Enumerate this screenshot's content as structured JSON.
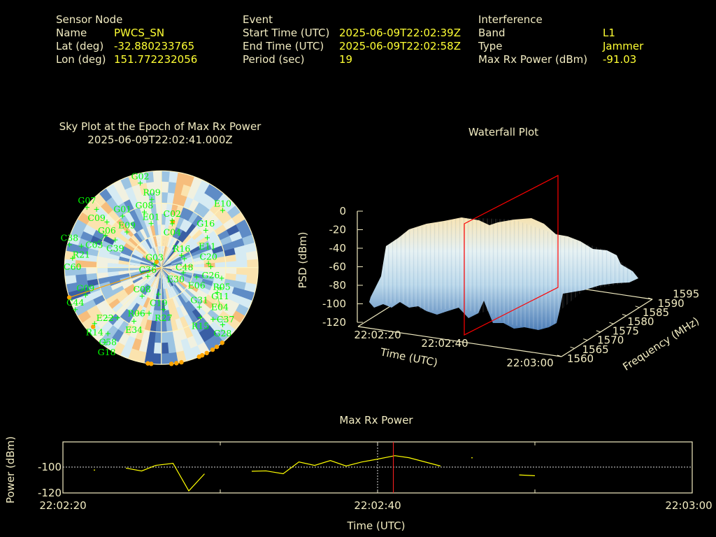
{
  "header": {
    "sensor": {
      "title": "Sensor Node",
      "rows": [
        {
          "label": "Name",
          "value": "PWCS_SN"
        },
        {
          "label": "Lat (deg)",
          "value": "-32.880233765"
        },
        {
          "label": "Lon (deg)",
          "value": "151.772232056"
        }
      ]
    },
    "event": {
      "title": "Event",
      "rows": [
        {
          "label": "Start Time (UTC)",
          "value": "2025-06-09T22:02:39Z"
        },
        {
          "label": "End Time (UTC)",
          "value": "2025-06-09T22:02:58Z"
        },
        {
          "label": "Period (sec)",
          "value": "19"
        }
      ]
    },
    "interference": {
      "title": "Interference",
      "rows": [
        {
          "label": "Band",
          "value": "L1"
        },
        {
          "label": "Type",
          "value": "Jammer"
        },
        {
          "label": "Max Rx Power (dBm)",
          "value": "-91.03"
        }
      ]
    }
  },
  "colors": {
    "text": "#f2ecc2",
    "value": "#ffff33",
    "satellite": "#00ff00",
    "jammer": "#ffa500",
    "marker": "#ff0000",
    "line": "#ffff00"
  },
  "chart_data": [
    {
      "type": "scatter",
      "subtype": "polar-sky-plot",
      "title": "Sky Plot at the Epoch of Max Rx Power",
      "subtitle": "2025-06-09T22:02:41.000Z",
      "elevation_rings": [
        0,
        30,
        60
      ],
      "satellites": [
        {
          "id": "G02",
          "az": 346,
          "el": 9
        },
        {
          "id": "R09",
          "az": 352,
          "el": 26
        },
        {
          "id": "G07",
          "az": 309,
          "el": 1
        },
        {
          "id": "C09",
          "az": 312,
          "el": 9
        },
        {
          "id": "G01",
          "az": 323,
          "el": 30
        },
        {
          "id": "G08",
          "az": 343,
          "el": 36
        },
        {
          "id": "E01",
          "az": 347,
          "el": 48
        },
        {
          "id": "C02",
          "az": 13,
          "el": 45
        },
        {
          "id": "C04",
          "az": 14,
          "el": 48
        },
        {
          "id": "E10",
          "az": 47,
          "el": 12
        },
        {
          "id": "G16",
          "az": 50,
          "el": 36
        },
        {
          "id": "E11",
          "az": 57,
          "el": 39
        },
        {
          "id": "G06",
          "az": 310,
          "el": 24
        },
        {
          "id": "E09",
          "az": 316,
          "el": 44
        },
        {
          "id": "C39",
          "az": 301,
          "el": 40
        },
        {
          "id": "C03",
          "az": 300,
          "el": 30
        },
        {
          "id": "C38",
          "az": 284,
          "el": 2
        },
        {
          "id": "R21",
          "az": 285,
          "el": 13
        },
        {
          "id": "C60",
          "az": 276,
          "el": 7
        },
        {
          "id": "R16",
          "az": 59,
          "el": 68
        },
        {
          "id": "C48",
          "az": 69,
          "el": 67
        },
        {
          "id": "C20",
          "az": 85,
          "el": 46
        },
        {
          "id": "G26",
          "az": 89,
          "el": 44
        },
        {
          "id": "E06",
          "az": 105,
          "el": 56
        },
        {
          "id": "R05",
          "az": 100,
          "el": 33
        },
        {
          "id": "G11",
          "az": 109,
          "el": 32
        },
        {
          "id": "E04",
          "az": 114,
          "el": 33
        },
        {
          "id": "E30",
          "az": 103,
          "el": 69
        },
        {
          "id": "C36",
          "az": 237,
          "el": 75
        },
        {
          "id": "C19",
          "az": 186,
          "el": 65
        },
        {
          "id": "C08",
          "az": 214,
          "el": 58
        },
        {
          "id": "G09",
          "az": 250,
          "el": 15
        },
        {
          "id": "C44",
          "az": 244,
          "el": 1
        },
        {
          "id": "R27",
          "az": 177,
          "el": 51
        },
        {
          "id": "R06",
          "az": 195,
          "el": 46
        },
        {
          "id": "E34",
          "az": 207,
          "el": 34
        },
        {
          "id": "E22",
          "az": 221,
          "el": 28
        },
        {
          "id": "G31",
          "az": 136,
          "el": 39
        },
        {
          "id": "R15",
          "az": 142,
          "el": 31
        },
        {
          "id": "C37",
          "az": 135,
          "el": 22
        },
        {
          "id": "G28",
          "az": 133,
          "el": 12
        },
        {
          "id": "R14",
          "az": 230,
          "el": 9
        },
        {
          "id": "C58",
          "az": 219,
          "el": 11
        },
        {
          "id": "G18",
          "az": 217,
          "el": 3
        },
        {
          "id": "G03",
          "az": 296,
          "el": 83
        }
      ],
      "jammer_markers": [
        {
          "az": 141,
          "el": 0
        },
        {
          "az": 145,
          "el": 0
        },
        {
          "az": 148,
          "el": 0
        },
        {
          "az": 152,
          "el": 0
        },
        {
          "az": 155,
          "el": 0
        },
        {
          "az": 157,
          "el": 0
        },
        {
          "az": 168,
          "el": 0
        },
        {
          "az": 171,
          "el": 0
        },
        {
          "az": 174,
          "el": 0
        },
        {
          "az": 186,
          "el": 0
        },
        {
          "az": 188,
          "el": 0
        },
        {
          "az": 14,
          "el": 46
        },
        {
          "az": 321,
          "el": 83
        },
        {
          "az": 229,
          "el": 6
        },
        {
          "az": 252,
          "el": 0
        }
      ],
      "jammer_bearing_az": 252
    },
    {
      "type": "surface",
      "title": "Waterfall Plot",
      "xlabel": "Time (UTC)",
      "ylabel": "Frequency (MHz)",
      "zlabel": "PSD (dBm)",
      "x_ticks": [
        "22:02:20",
        "22:02:40",
        "22:03:00"
      ],
      "y_ticks": [
        "1560",
        "1565",
        "1570",
        "1575",
        "1580",
        "1585",
        "1590",
        "1595"
      ],
      "z_ticks": [
        "0",
        "-20",
        "-40",
        "-60",
        "-80",
        "-100",
        "-120"
      ],
      "zlim": [
        -120,
        0
      ],
      "marker_time": "22:02:41"
    },
    {
      "type": "line",
      "title": "Max Rx Power",
      "xlabel": "Time (UTC)",
      "ylabel": "Power (dBm)",
      "x_unit": "seconds after 22:02:20",
      "xlim": [
        0,
        40
      ],
      "ylim": [
        -120,
        -80
      ],
      "x_ticks": [
        "22:02:20",
        "22:02:40",
        "22:03:00"
      ],
      "y_ticks": [
        "-100",
        "-120"
      ],
      "marker_x": 21,
      "segments": [
        [
          [
            2,
            -102
          ]
        ],
        [
          [
            4,
            -100.5
          ],
          [
            5,
            -102.8
          ],
          [
            5.9,
            -98.4
          ],
          [
            7,
            -96.8
          ],
          [
            8,
            -118.4
          ],
          [
            9,
            -105
          ]
        ],
        [
          [
            12,
            -103
          ],
          [
            12.9,
            -102.7
          ],
          [
            14,
            -104.9
          ],
          [
            15,
            -95.7
          ],
          [
            16,
            -98.4
          ],
          [
            17,
            -94.6
          ],
          [
            18,
            -98.9
          ],
          [
            19,
            -95.7
          ],
          [
            20,
            -93.5
          ],
          [
            21.1,
            -90.8
          ],
          [
            22,
            -92.4
          ],
          [
            24,
            -98.9
          ]
        ],
        [
          [
            26,
            -92.4
          ]
        ],
        [
          [
            29,
            -105.9
          ],
          [
            30,
            -106.5
          ]
        ]
      ]
    }
  ]
}
